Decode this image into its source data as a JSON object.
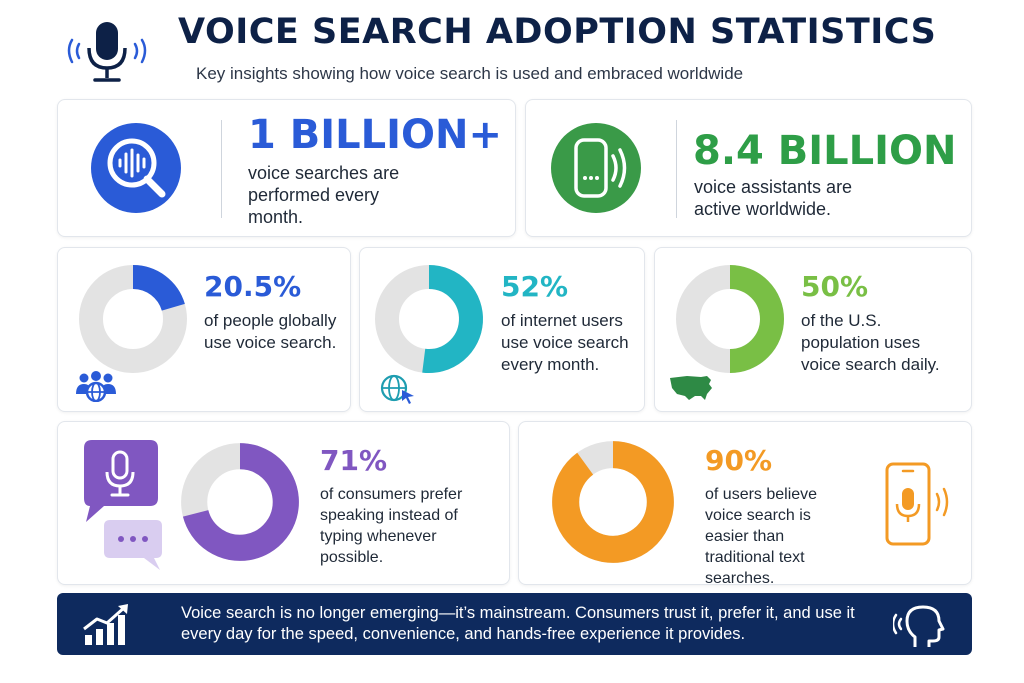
{
  "header": {
    "title": "VOICE SEARCH ADOPTION STATISTICS",
    "subtitle": "Key insights showing how voice search is used and embraced worldwide",
    "icon": "microphone-icon"
  },
  "stats_top": [
    {
      "value": "1 BILLION+",
      "description": "voice searches are performed every month.",
      "color": "#2a5bd7",
      "icon": "voice-search-magnifier-icon"
    },
    {
      "value": "8.4 BILLION",
      "description": "voice assistants are active worldwide.",
      "color": "#2e9e47",
      "icon": "smart-speaker-icon"
    }
  ],
  "stats_middle": [
    {
      "value": "20.5%",
      "fraction": 0.205,
      "description": "of people globally use voice search.",
      "color": "#2a5bd7",
      "icon": "people-globe-icon"
    },
    {
      "value": "52%",
      "fraction": 0.52,
      "description": "of internet users use voice search every month.",
      "color": "#22b5c4",
      "icon": "globe-cursor-icon"
    },
    {
      "value": "50%",
      "fraction": 0.5,
      "description": "of the U.S. population uses voice search daily.",
      "color": "#79bf45",
      "icon": "usa-map-icon"
    }
  ],
  "stats_bottom": [
    {
      "value": "71%",
      "fraction": 0.71,
      "description": "of consumers prefer speaking instead of typing whenever possible.",
      "color": "#8057c1",
      "icon": "speech-bubble-mic-icon"
    },
    {
      "value": "90%",
      "fraction": 0.9,
      "description": "of users believe voice search is easier than traditional text searches.",
      "color": "#f39a24",
      "icon": "smartphone-mic-icon"
    }
  ],
  "footer": {
    "text": "Voice search is no longer emerging—it’s mainstream. Consumers trust it, prefer it, and use it every day for the speed, convenience, and hands-free experience it provides.",
    "icons": [
      "growth-chart-icon",
      "speaking-head-icon"
    ]
  },
  "colors": {
    "navy": "#0e2a5e",
    "track": "#e3e3e3"
  }
}
